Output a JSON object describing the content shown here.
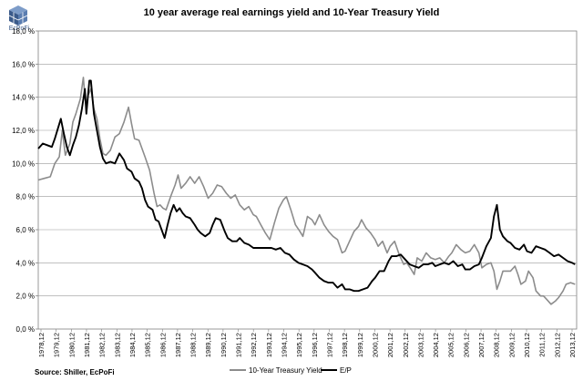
{
  "logo": {
    "text": "EcPoFi",
    "icon": "ecpofi-cube-logo"
  },
  "source": "Source: Shiller,  EcPoFi",
  "chart_data": {
    "type": "line",
    "title": "10 year average real earnings yield and 10-Year Treasury Yield",
    "xlabel": "",
    "ylabel": "",
    "ylim": [
      0,
      18
    ],
    "y_ticks": [
      0,
      2,
      4,
      6,
      8,
      10,
      12,
      14,
      16,
      18
    ],
    "y_tick_labels": [
      "0,0 %",
      "2,0 %",
      "4,0 %",
      "6,0 %",
      "8,0 %",
      "10,0 %",
      "12,0 %",
      "14,0 %",
      "16,0 %",
      "18,0 %"
    ],
    "x_tick_labels": [
      "1978,12",
      "1979,12",
      "1980,12",
      "1981,12",
      "1982,12",
      "1983,12",
      "1984,12",
      "1985,12",
      "1986,12",
      "1987,12",
      "1988,12",
      "1989,12",
      "1990,12",
      "1991,12",
      "1992,12",
      "1993,12",
      "1994,12",
      "1995,12",
      "1996,12",
      "1997,12",
      "1998,12",
      "1999,12",
      "2000,12",
      "2001,12",
      "2002,12",
      "2003,12",
      "2004,12",
      "2005,12",
      "2006,12",
      "2007,12",
      "2008,12",
      "2009,12",
      "2010,12",
      "2011,12",
      "2012,12",
      "2013,12"
    ],
    "xlim": [
      1978.5,
      2014.3
    ],
    "grid": true,
    "legend_position": "bottom",
    "series": [
      {
        "name": "10-Year Treasury Yield",
        "color": "#8c8c8c",
        "points": [
          [
            1978.5,
            9.0
          ],
          [
            1978.9,
            9.1
          ],
          [
            1979.3,
            9.2
          ],
          [
            1979.6,
            10.0
          ],
          [
            1979.9,
            10.4
          ],
          [
            1980.1,
            12.0
          ],
          [
            1980.3,
            10.5
          ],
          [
            1980.6,
            11.2
          ],
          [
            1980.8,
            12.5
          ],
          [
            1981.0,
            13.0
          ],
          [
            1981.3,
            13.9
          ],
          [
            1981.5,
            15.2
          ],
          [
            1981.6,
            14.0
          ],
          [
            1981.7,
            13.3
          ],
          [
            1981.8,
            14.1
          ],
          [
            1982.0,
            14.5
          ],
          [
            1982.2,
            13.3
          ],
          [
            1982.4,
            12.7
          ],
          [
            1982.6,
            11.5
          ],
          [
            1982.8,
            10.6
          ],
          [
            1983.0,
            10.5
          ],
          [
            1983.3,
            10.8
          ],
          [
            1983.6,
            11.6
          ],
          [
            1983.9,
            11.8
          ],
          [
            1984.2,
            12.5
          ],
          [
            1984.5,
            13.4
          ],
          [
            1984.7,
            12.4
          ],
          [
            1984.9,
            11.5
          ],
          [
            1985.2,
            11.4
          ],
          [
            1985.4,
            10.9
          ],
          [
            1985.6,
            10.4
          ],
          [
            1985.9,
            9.6
          ],
          [
            1986.2,
            8.2
          ],
          [
            1986.4,
            7.4
          ],
          [
            1986.6,
            7.5
          ],
          [
            1986.8,
            7.3
          ],
          [
            1987.0,
            7.2
          ],
          [
            1987.3,
            8.0
          ],
          [
            1987.6,
            8.7
          ],
          [
            1987.8,
            9.3
          ],
          [
            1988.0,
            8.5
          ],
          [
            1988.3,
            8.8
          ],
          [
            1988.6,
            9.2
          ],
          [
            1988.9,
            8.8
          ],
          [
            1989.2,
            9.2
          ],
          [
            1989.5,
            8.6
          ],
          [
            1989.8,
            7.9
          ],
          [
            1990.1,
            8.2
          ],
          [
            1990.4,
            8.7
          ],
          [
            1990.7,
            8.6
          ],
          [
            1991.0,
            8.2
          ],
          [
            1991.3,
            7.9
          ],
          [
            1991.6,
            8.1
          ],
          [
            1991.9,
            7.5
          ],
          [
            1992.2,
            7.2
          ],
          [
            1992.5,
            7.4
          ],
          [
            1992.8,
            6.9
          ],
          [
            1993.0,
            6.8
          ],
          [
            1993.3,
            6.3
          ],
          [
            1993.6,
            5.8
          ],
          [
            1993.9,
            5.4
          ],
          [
            1994.2,
            6.4
          ],
          [
            1994.5,
            7.3
          ],
          [
            1994.8,
            7.8
          ],
          [
            1995.0,
            8.0
          ],
          [
            1995.3,
            7.2
          ],
          [
            1995.6,
            6.3
          ],
          [
            1995.9,
            5.9
          ],
          [
            1996.1,
            5.6
          ],
          [
            1996.4,
            6.8
          ],
          [
            1996.7,
            6.6
          ],
          [
            1996.9,
            6.3
          ],
          [
            1997.2,
            6.9
          ],
          [
            1997.5,
            6.3
          ],
          [
            1997.8,
            5.9
          ],
          [
            1998.1,
            5.6
          ],
          [
            1998.4,
            5.4
          ],
          [
            1998.7,
            4.6
          ],
          [
            1998.9,
            4.7
          ],
          [
            1999.2,
            5.3
          ],
          [
            1999.5,
            5.9
          ],
          [
            1999.8,
            6.2
          ],
          [
            2000.0,
            6.6
          ],
          [
            2000.3,
            6.1
          ],
          [
            2000.6,
            5.8
          ],
          [
            2000.9,
            5.4
          ],
          [
            2001.1,
            5.0
          ],
          [
            2001.4,
            5.3
          ],
          [
            2001.7,
            4.6
          ],
          [
            2001.9,
            5.0
          ],
          [
            2002.2,
            5.3
          ],
          [
            2002.5,
            4.5
          ],
          [
            2002.8,
            3.9
          ],
          [
            2003.0,
            4.0
          ],
          [
            2003.3,
            3.6
          ],
          [
            2003.5,
            3.3
          ],
          [
            2003.7,
            4.3
          ],
          [
            2004.0,
            4.1
          ],
          [
            2004.3,
            4.6
          ],
          [
            2004.6,
            4.3
          ],
          [
            2004.9,
            4.2
          ],
          [
            2005.2,
            4.3
          ],
          [
            2005.5,
            4.0
          ],
          [
            2005.8,
            4.4
          ],
          [
            2006.0,
            4.6
          ],
          [
            2006.3,
            5.1
          ],
          [
            2006.6,
            4.8
          ],
          [
            2006.9,
            4.6
          ],
          [
            2007.2,
            4.7
          ],
          [
            2007.5,
            5.1
          ],
          [
            2007.8,
            4.6
          ],
          [
            2008.0,
            3.7
          ],
          [
            2008.3,
            3.9
          ],
          [
            2008.6,
            4.0
          ],
          [
            2008.8,
            3.5
          ],
          [
            2009.0,
            2.4
          ],
          [
            2009.2,
            2.9
          ],
          [
            2009.4,
            3.5
          ],
          [
            2009.6,
            3.5
          ],
          [
            2009.9,
            3.5
          ],
          [
            2010.2,
            3.8
          ],
          [
            2010.4,
            3.3
          ],
          [
            2010.6,
            2.7
          ],
          [
            2010.9,
            2.9
          ],
          [
            2011.1,
            3.5
          ],
          [
            2011.4,
            3.1
          ],
          [
            2011.6,
            2.3
          ],
          [
            2011.9,
            2.0
          ],
          [
            2012.1,
            2.0
          ],
          [
            2012.4,
            1.7
          ],
          [
            2012.6,
            1.5
          ],
          [
            2012.9,
            1.7
          ],
          [
            2013.1,
            1.9
          ],
          [
            2013.4,
            2.3
          ],
          [
            2013.6,
            2.7
          ],
          [
            2013.9,
            2.8
          ],
          [
            2014.2,
            2.7
          ]
        ]
      },
      {
        "name": "E/P",
        "color": "#000000",
        "points": [
          [
            1978.5,
            10.9
          ],
          [
            1978.8,
            11.2
          ],
          [
            1979.1,
            11.1
          ],
          [
            1979.4,
            11.0
          ],
          [
            1979.6,
            11.5
          ],
          [
            1979.8,
            12.1
          ],
          [
            1980.0,
            12.7
          ],
          [
            1980.2,
            11.8
          ],
          [
            1980.4,
            11.0
          ],
          [
            1980.6,
            10.5
          ],
          [
            1980.8,
            11.1
          ],
          [
            1981.0,
            11.6
          ],
          [
            1981.2,
            12.3
          ],
          [
            1981.4,
            13.3
          ],
          [
            1981.6,
            14.5
          ],
          [
            1981.7,
            13.0
          ],
          [
            1981.9,
            15.0
          ],
          [
            1982.0,
            15.0
          ],
          [
            1982.2,
            13.0
          ],
          [
            1982.4,
            12.0
          ],
          [
            1982.6,
            11.0
          ],
          [
            1982.8,
            10.3
          ],
          [
            1983.0,
            10.0
          ],
          [
            1983.3,
            10.1
          ],
          [
            1983.6,
            10.0
          ],
          [
            1983.9,
            10.6
          ],
          [
            1984.2,
            10.2
          ],
          [
            1984.4,
            9.7
          ],
          [
            1984.7,
            9.5
          ],
          [
            1984.9,
            9.1
          ],
          [
            1985.2,
            8.9
          ],
          [
            1985.4,
            8.5
          ],
          [
            1985.6,
            7.8
          ],
          [
            1985.8,
            7.4
          ],
          [
            1986.1,
            7.2
          ],
          [
            1986.3,
            6.6
          ],
          [
            1986.5,
            6.5
          ],
          [
            1986.7,
            6.0
          ],
          [
            1986.9,
            5.5
          ],
          [
            1987.1,
            6.3
          ],
          [
            1987.3,
            7.0
          ],
          [
            1987.5,
            7.5
          ],
          [
            1987.7,
            7.1
          ],
          [
            1987.9,
            7.3
          ],
          [
            1988.1,
            7.0
          ],
          [
            1988.3,
            6.8
          ],
          [
            1988.6,
            6.7
          ],
          [
            1988.9,
            6.3
          ],
          [
            1989.1,
            6.0
          ],
          [
            1989.3,
            5.8
          ],
          [
            1989.6,
            5.6
          ],
          [
            1989.9,
            5.8
          ],
          [
            1990.1,
            6.3
          ],
          [
            1990.3,
            6.7
          ],
          [
            1990.6,
            6.6
          ],
          [
            1990.9,
            5.9
          ],
          [
            1991.1,
            5.5
          ],
          [
            1991.4,
            5.3
          ],
          [
            1991.7,
            5.3
          ],
          [
            1991.9,
            5.5
          ],
          [
            1992.2,
            5.2
          ],
          [
            1992.5,
            5.1
          ],
          [
            1992.8,
            4.9
          ],
          [
            1993.1,
            4.9
          ],
          [
            1993.4,
            4.9
          ],
          [
            1993.7,
            4.9
          ],
          [
            1994.0,
            4.9
          ],
          [
            1994.3,
            4.8
          ],
          [
            1994.6,
            4.9
          ],
          [
            1994.9,
            4.6
          ],
          [
            1995.2,
            4.5
          ],
          [
            1995.5,
            4.2
          ],
          [
            1995.8,
            4.0
          ],
          [
            1996.1,
            3.9
          ],
          [
            1996.4,
            3.8
          ],
          [
            1996.7,
            3.6
          ],
          [
            1996.9,
            3.4
          ],
          [
            1997.2,
            3.1
          ],
          [
            1997.5,
            2.9
          ],
          [
            1997.8,
            2.8
          ],
          [
            1998.1,
            2.8
          ],
          [
            1998.4,
            2.5
          ],
          [
            1998.7,
            2.7
          ],
          [
            1998.9,
            2.4
          ],
          [
            1999.2,
            2.4
          ],
          [
            1999.5,
            2.3
          ],
          [
            1999.8,
            2.3
          ],
          [
            2000.1,
            2.4
          ],
          [
            2000.4,
            2.5
          ],
          [
            2000.7,
            2.9
          ],
          [
            2000.9,
            3.1
          ],
          [
            2001.2,
            3.5
          ],
          [
            2001.5,
            3.5
          ],
          [
            2001.8,
            4.1
          ],
          [
            2002.0,
            4.4
          ],
          [
            2002.3,
            4.4
          ],
          [
            2002.6,
            4.5
          ],
          [
            2002.9,
            4.2
          ],
          [
            2003.2,
            3.9
          ],
          [
            2003.5,
            3.8
          ],
          [
            2003.8,
            3.7
          ],
          [
            2004.1,
            3.9
          ],
          [
            2004.4,
            3.9
          ],
          [
            2004.7,
            4.0
          ],
          [
            2004.9,
            3.8
          ],
          [
            2005.2,
            3.9
          ],
          [
            2005.5,
            4.0
          ],
          [
            2005.8,
            3.9
          ],
          [
            2006.1,
            4.1
          ],
          [
            2006.4,
            3.8
          ],
          [
            2006.7,
            3.9
          ],
          [
            2006.9,
            3.6
          ],
          [
            2007.2,
            3.6
          ],
          [
            2007.5,
            3.8
          ],
          [
            2007.8,
            3.9
          ],
          [
            2008.0,
            4.3
          ],
          [
            2008.3,
            5.0
          ],
          [
            2008.6,
            5.5
          ],
          [
            2008.8,
            6.8
          ],
          [
            2009.0,
            7.5
          ],
          [
            2009.2,
            6.0
          ],
          [
            2009.4,
            5.6
          ],
          [
            2009.7,
            5.3
          ],
          [
            2009.9,
            5.2
          ],
          [
            2010.2,
            4.9
          ],
          [
            2010.5,
            4.8
          ],
          [
            2010.8,
            5.1
          ],
          [
            2011.0,
            4.7
          ],
          [
            2011.3,
            4.6
          ],
          [
            2011.6,
            5.0
          ],
          [
            2011.9,
            4.9
          ],
          [
            2012.2,
            4.8
          ],
          [
            2012.5,
            4.6
          ],
          [
            2012.8,
            4.4
          ],
          [
            2013.1,
            4.5
          ],
          [
            2013.4,
            4.3
          ],
          [
            2013.7,
            4.1
          ],
          [
            2014.0,
            4.0
          ],
          [
            2014.2,
            3.9
          ]
        ]
      }
    ]
  }
}
